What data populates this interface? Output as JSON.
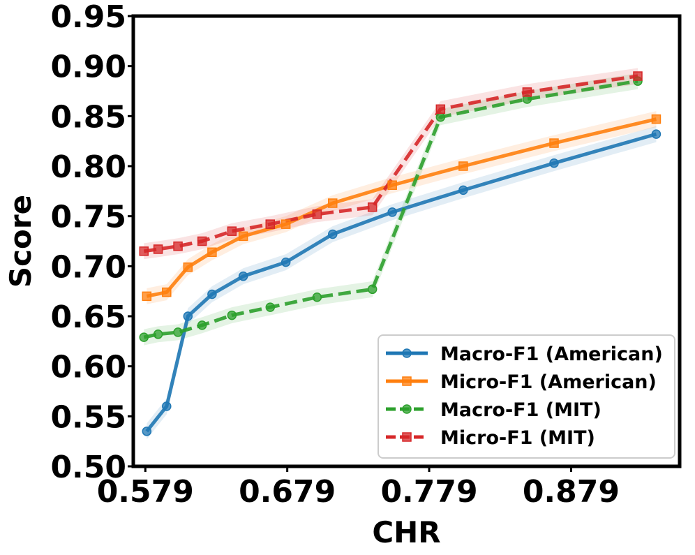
{
  "chart_data": {
    "type": "line",
    "xlabel": "CHR",
    "ylabel": "Score",
    "xlim": [
      0.5705,
      0.9555
    ],
    "ylim": [
      0.5,
      0.95
    ],
    "xticks": [
      "0.579",
      "0.679",
      "0.779",
      "0.879"
    ],
    "xtick_values": [
      0.579,
      0.679,
      0.779,
      0.879
    ],
    "yticks": [
      "0.50",
      "0.55",
      "0.60",
      "0.65",
      "0.70",
      "0.75",
      "0.80",
      "0.85",
      "0.90",
      "0.95"
    ],
    "ytick_values": [
      0.5,
      0.55,
      0.6,
      0.65,
      0.7,
      0.75,
      0.8,
      0.85,
      0.9,
      0.95
    ],
    "grid": false,
    "legend": "lower-right",
    "band_halfwidth": 0.008,
    "series": [
      {
        "name": "Macro-F1 (American)",
        "color": "#1f77b4",
        "marker": "circle",
        "dash": "solid",
        "x": [
          0.58,
          0.594,
          0.609,
          0.626,
          0.648,
          0.678,
          0.711,
          0.753,
          0.803,
          0.867,
          0.939
        ],
        "y": [
          0.535,
          0.56,
          0.65,
          0.672,
          0.69,
          0.704,
          0.732,
          0.754,
          0.776,
          0.803,
          0.832
        ]
      },
      {
        "name": "Micro-F1 (American)",
        "color": "#ff7f0e",
        "marker": "square",
        "dash": "solid",
        "x": [
          0.58,
          0.594,
          0.609,
          0.626,
          0.648,
          0.678,
          0.711,
          0.753,
          0.803,
          0.867,
          0.939
        ],
        "y": [
          0.67,
          0.674,
          0.699,
          0.714,
          0.73,
          0.742,
          0.763,
          0.781,
          0.8,
          0.823,
          0.847
        ]
      },
      {
        "name": "Macro-F1 (MIT)",
        "color": "#2ca02c",
        "marker": "circle",
        "dash": "dashed",
        "x": [
          0.578,
          0.588,
          0.602,
          0.619,
          0.64,
          0.667,
          0.7,
          0.739,
          0.787,
          0.848,
          0.926
        ],
        "y": [
          0.629,
          0.632,
          0.634,
          0.641,
          0.651,
          0.659,
          0.669,
          0.677,
          0.849,
          0.867,
          0.885
        ]
      },
      {
        "name": "Micro-F1 (MIT)",
        "color": "#d62728",
        "marker": "square",
        "dash": "dashed",
        "x": [
          0.578,
          0.588,
          0.602,
          0.619,
          0.64,
          0.667,
          0.7,
          0.739,
          0.787,
          0.848,
          0.926
        ],
        "y": [
          0.715,
          0.717,
          0.72,
          0.725,
          0.735,
          0.742,
          0.752,
          0.759,
          0.857,
          0.874,
          0.89
        ]
      }
    ]
  }
}
